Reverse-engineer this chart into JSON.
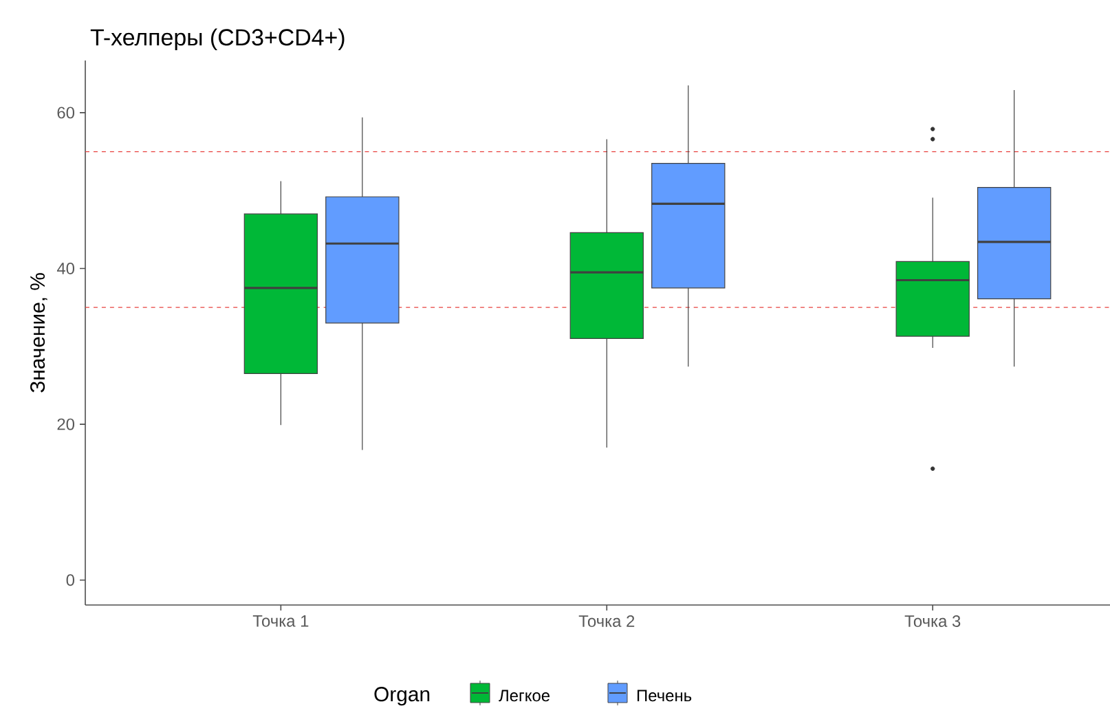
{
  "chart_data": {
    "type": "box",
    "title": "T-хелперы (CD3+CD4+)",
    "ylabel": "Значение, %",
    "legend_title": "Organ",
    "legend": "bottom",
    "grid": false,
    "categories": [
      "Точка 1",
      "Точка 2",
      "Точка 3"
    ],
    "ylim": [
      -3.2,
      66.7
    ],
    "yticks": [
      0,
      20,
      40,
      60
    ],
    "ref_lines": [
      {
        "axis": "y",
        "value": 55,
        "color": "#e8423f",
        "line_style": "dashed"
      },
      {
        "axis": "y",
        "value": 35,
        "color": "#e8423f",
        "line_style": "dashed"
      }
    ],
    "series": [
      {
        "name": "Легкое",
        "color": "#00b837",
        "boxes": [
          {
            "low": 19.9,
            "q1": 26.5,
            "median": 37.5,
            "q3": 47.0,
            "high": 51.2
          },
          {
            "low": 17.0,
            "q1": 31.0,
            "median": 39.5,
            "q3": 44.6,
            "high": 56.6
          },
          {
            "low": 29.8,
            "q1": 31.3,
            "median": 38.5,
            "q3": 40.9,
            "high": 49.1,
            "outliers": [
              57.9,
              56.6,
              14.3
            ]
          }
        ]
      },
      {
        "name": "Печень",
        "color": "#619cff",
        "boxes": [
          {
            "low": 16.7,
            "q1": 33.0,
            "median": 43.2,
            "q3": 49.2,
            "high": 59.4
          },
          {
            "low": 27.4,
            "q1": 37.5,
            "median": 48.3,
            "q3": 53.5,
            "high": 63.5
          },
          {
            "low": 27.4,
            "q1": 36.1,
            "median": 43.4,
            "q3": 50.4,
            "high": 62.9
          }
        ]
      }
    ]
  }
}
